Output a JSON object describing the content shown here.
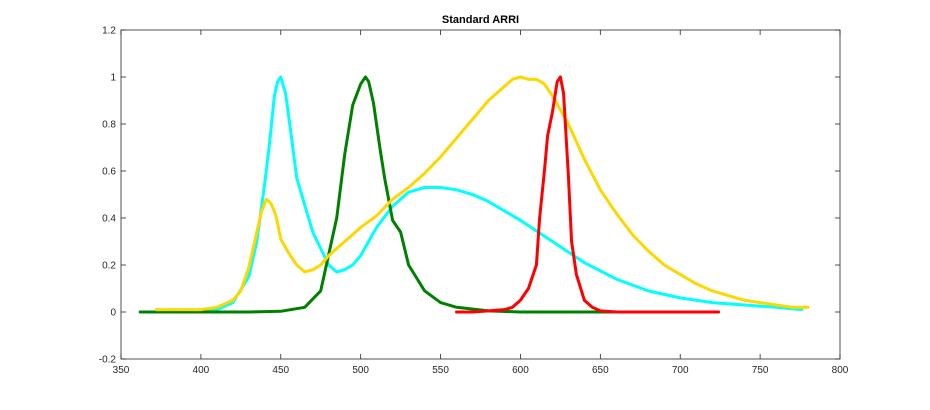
{
  "chart_data": {
    "type": "line",
    "title": "Standard ARRI",
    "xlabel": "",
    "ylabel": "",
    "xlim": [
      350,
      800
    ],
    "ylim": [
      -0.2,
      1.2
    ],
    "xticks": [
      350,
      400,
      450,
      500,
      550,
      600,
      650,
      700,
      750,
      800
    ],
    "yticks": [
      -0.2,
      0,
      0.2,
      0.4,
      0.6,
      0.8,
      1,
      1.2
    ],
    "grid": false,
    "legend": "none",
    "series": [
      {
        "color": "#00ffff",
        "x": [
          362,
          380,
          400,
          410,
          420,
          430,
          435,
          440,
          443,
          446,
          448,
          450,
          453,
          456,
          460,
          470,
          480,
          485,
          490,
          495,
          500,
          510,
          520,
          530,
          540,
          550,
          560,
          570,
          580,
          600,
          620,
          640,
          660,
          680,
          700,
          720,
          740,
          760,
          776
        ],
        "y": [
          0.0,
          0.0,
          0.0,
          0.01,
          0.04,
          0.15,
          0.3,
          0.55,
          0.72,
          0.92,
          0.98,
          1.0,
          0.93,
          0.78,
          0.57,
          0.34,
          0.2,
          0.17,
          0.18,
          0.2,
          0.24,
          0.36,
          0.45,
          0.51,
          0.53,
          0.53,
          0.52,
          0.5,
          0.47,
          0.39,
          0.3,
          0.21,
          0.14,
          0.09,
          0.06,
          0.04,
          0.03,
          0.02,
          0.01
        ]
      },
      {
        "color": "#008000",
        "x": [
          362,
          400,
          430,
          450,
          465,
          475,
          485,
          490,
          495,
          500,
          503,
          505,
          508,
          512,
          515,
          520,
          525,
          530,
          540,
          550,
          560,
          580,
          600,
          620,
          640,
          658
        ],
        "y": [
          0.0,
          0.0,
          0.0,
          0.003,
          0.02,
          0.09,
          0.4,
          0.67,
          0.88,
          0.97,
          1.0,
          0.98,
          0.89,
          0.7,
          0.57,
          0.39,
          0.34,
          0.2,
          0.09,
          0.04,
          0.02,
          0.005,
          0.0,
          0.0,
          0.0,
          0.0
        ]
      },
      {
        "color": "#ffd700",
        "x": [
          372,
          390,
          400,
          410,
          420,
          425,
          430,
          435,
          438,
          441,
          444,
          447,
          450,
          455,
          460,
          465,
          470,
          475,
          480,
          490,
          500,
          510,
          520,
          530,
          540,
          550,
          560,
          570,
          580,
          590,
          595,
          600,
          605,
          610,
          615,
          620,
          630,
          640,
          650,
          660,
          670,
          680,
          690,
          700,
          710,
          720,
          730,
          740,
          750,
          760,
          770,
          776,
          780
        ],
        "y": [
          0.01,
          0.01,
          0.01,
          0.02,
          0.05,
          0.09,
          0.19,
          0.34,
          0.43,
          0.48,
          0.46,
          0.41,
          0.31,
          0.25,
          0.2,
          0.17,
          0.18,
          0.2,
          0.24,
          0.3,
          0.36,
          0.41,
          0.48,
          0.53,
          0.59,
          0.66,
          0.74,
          0.82,
          0.9,
          0.96,
          0.99,
          1.0,
          0.99,
          0.99,
          0.97,
          0.92,
          0.8,
          0.65,
          0.52,
          0.42,
          0.33,
          0.26,
          0.2,
          0.16,
          0.12,
          0.09,
          0.07,
          0.05,
          0.04,
          0.03,
          0.02,
          0.02,
          0.02
        ]
      },
      {
        "color": "#ff0000",
        "x": [
          560,
          570,
          580,
          590,
          595,
          600,
          605,
          610,
          612,
          615,
          617,
          620,
          623,
          625,
          627,
          630,
          632,
          635,
          640,
          645,
          650,
          660,
          680,
          700,
          724
        ],
        "y": [
          0.0,
          0.0,
          0.005,
          0.01,
          0.02,
          0.05,
          0.1,
          0.2,
          0.4,
          0.6,
          0.75,
          0.85,
          0.98,
          1.0,
          0.93,
          0.58,
          0.3,
          0.16,
          0.05,
          0.02,
          0.005,
          0.0,
          0.0,
          0.0,
          0.0
        ]
      }
    ]
  }
}
